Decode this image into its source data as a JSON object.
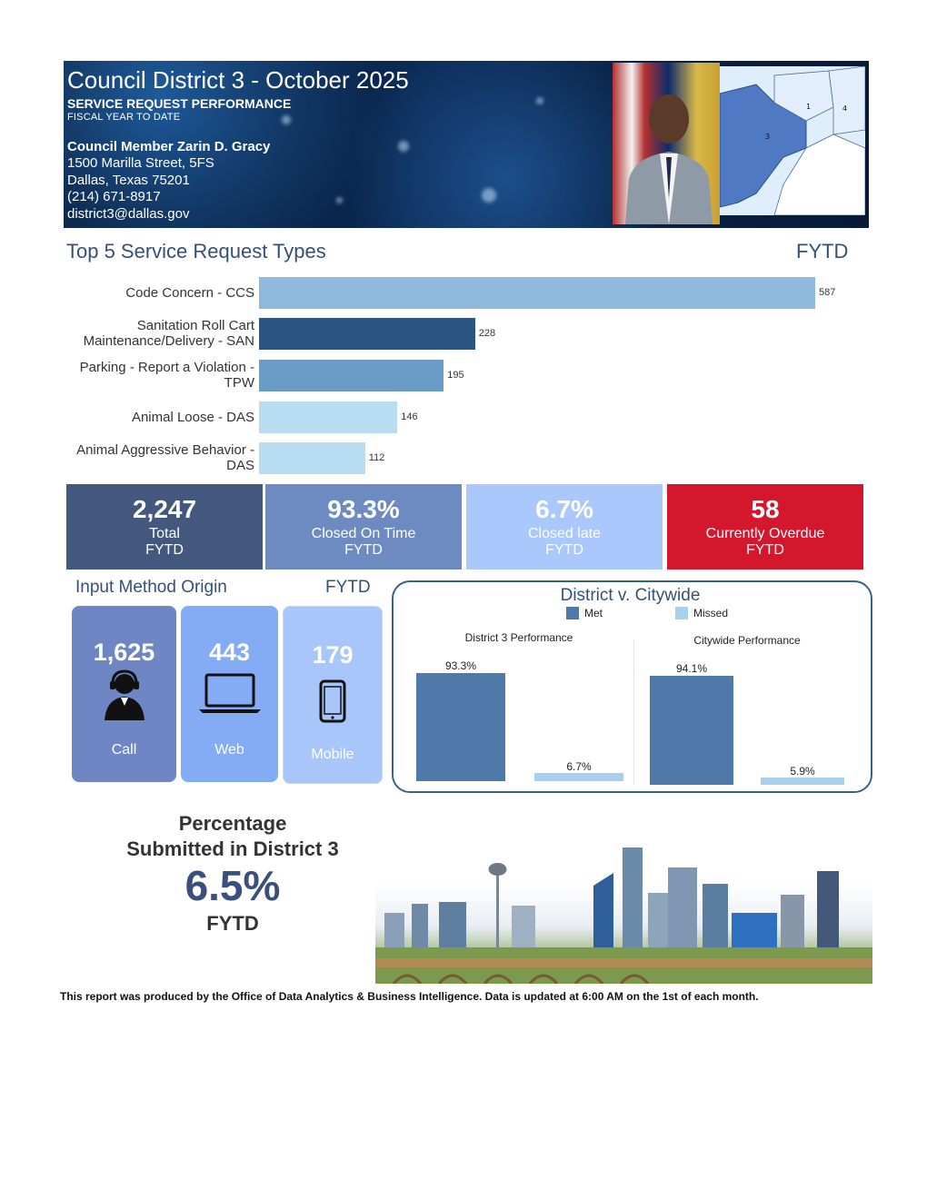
{
  "header": {
    "title": "Council District 3 - October 2025",
    "subtitle": "SERVICE REQUEST PERFORMANCE",
    "period": "FISCAL YEAR TO DATE",
    "member": "Council Member Zarin D. Gracy",
    "address1": "1500 Marilla Street, 5FS",
    "address2": "Dallas, Texas 75201",
    "phone": "(214) 671-8917",
    "email": "district3@dallas.gov",
    "map_labels": [
      "1",
      "4",
      "3"
    ]
  },
  "top5": {
    "title": "Top 5 Service Request Types",
    "period": "FYTD",
    "chart_data": {
      "type": "bar",
      "orientation": "horizontal",
      "categories": [
        "Code Concern - CCS",
        "Sanitation Roll Cart Maintenance/Delivery - SAN",
        "Parking - Report a Violation - TPW",
        "Animal Loose - DAS",
        "Animal Aggressive Behavior - DAS"
      ],
      "label_lines": [
        [
          "Code Concern - CCS"
        ],
        [
          "Sanitation Roll Cart",
          "Maintenance/Delivery - SAN"
        ],
        [
          "Parking - Report a Violation -",
          "TPW"
        ],
        [
          "Animal Loose - DAS"
        ],
        [
          "Animal Aggressive Behavior -",
          "DAS"
        ]
      ],
      "values": [
        587,
        228,
        195,
        146,
        112
      ],
      "colors": [
        "#8fbadd",
        "#2b5582",
        "#6b9cc8",
        "#b8dcf2",
        "#b8dcf2"
      ],
      "xlim": [
        0,
        600
      ]
    }
  },
  "kpis": [
    {
      "value": "2,247",
      "label": "Total",
      "sub": "FYTD",
      "color": "#44587e"
    },
    {
      "value": "93.3%",
      "label": "Closed On Time",
      "sub": "FYTD",
      "color": "#6d8bc0"
    },
    {
      "value": "6.7%",
      "label": "Closed late",
      "sub": "FYTD",
      "color": "#aac8fb"
    },
    {
      "value": "58",
      "label": "Currently Overdue",
      "sub": "FYTD",
      "color": "#d3182d"
    }
  ],
  "input": {
    "title": "Input Method Origin",
    "period": "FYTD",
    "tiles": [
      {
        "value": "1,625",
        "label": "Call",
        "icon": "headset-agent-icon",
        "color": "#6e86c4"
      },
      {
        "value": "443",
        "label": "Web",
        "icon": "laptop-icon",
        "color": "#83acf5"
      },
      {
        "value": "179",
        "label": "Mobile",
        "icon": "mobile-phone-icon",
        "color": "#a8c6fa"
      }
    ]
  },
  "dvc": {
    "title": "District v. Citywide",
    "legend": [
      {
        "name": "Met",
        "color": "#4f79a8"
      },
      {
        "name": "Missed",
        "color": "#a8d0ec"
      }
    ],
    "chart_data": [
      {
        "type": "bar",
        "title": "District 3 Performance",
        "categories": [
          "Met",
          "Missed"
        ],
        "values": [
          93.3,
          6.7
        ],
        "labels": [
          "93.3%",
          "6.7%"
        ],
        "ylim": [
          0,
          100
        ]
      },
      {
        "type": "bar",
        "title": "Citywide Performance",
        "categories": [
          "Met",
          "Missed"
        ],
        "values": [
          94.1,
          5.9
        ],
        "labels": [
          "94.1%",
          "5.9%"
        ],
        "ylim": [
          0,
          100
        ]
      }
    ]
  },
  "percentage": {
    "line1": "Percentage",
    "line2": "Submitted in District 3",
    "value": "6.5%",
    "period": "FYTD"
  },
  "footer": "This report was produced by the Office of Data Analytics & Business Intelligence. Data is updated at 6:00 AM on the 1st of each month."
}
